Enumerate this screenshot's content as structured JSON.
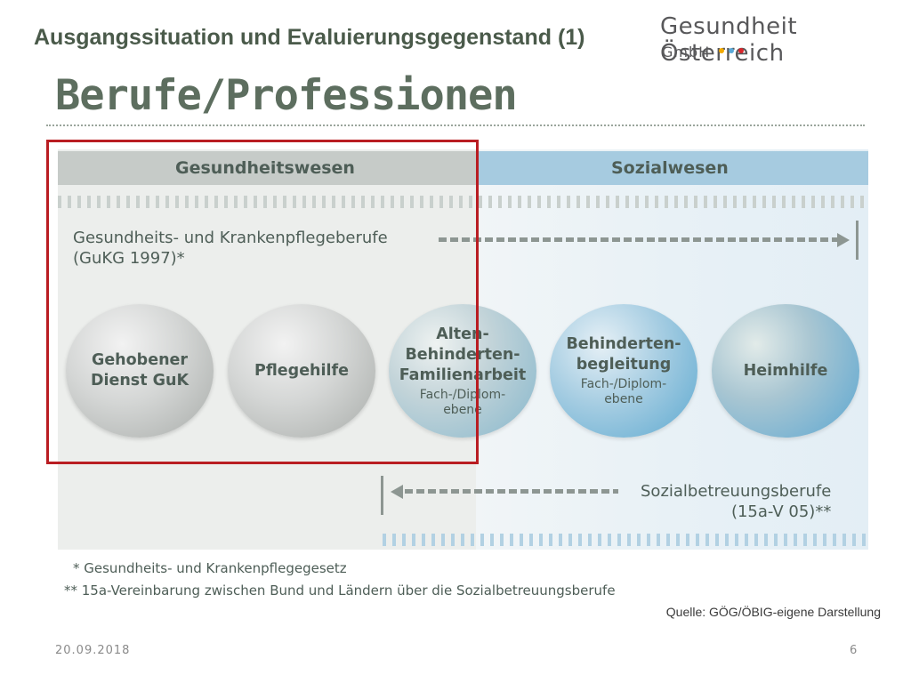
{
  "slide": {
    "subtitle": "Ausgangssituation und Evaluierungsgegenstand (1)",
    "title": "Berufe/Professionen",
    "date": "20.09.2018",
    "page_number": "6"
  },
  "logo": {
    "name": "Gesundheit Österreich",
    "suffix": "GmbH",
    "dot_colors": [
      "#f2a900",
      "#5aa9d8",
      "#d9262a"
    ]
  },
  "diagram": {
    "header_left": "Gesundheitswesen",
    "header_right": "Sozialwesen",
    "top_label_line1": "Gesundheits- und Krankenpflegeberufe",
    "top_label_line2": "(GuKG 1997)*",
    "bottom_label_line1": "Sozialbetreuungsberufe",
    "bottom_label_line2": "(15a-V 05)**",
    "circles": [
      {
        "name_line1": "Gehobener",
        "name_line2": "Dienst GuK"
      },
      {
        "name_line1": "Pflegehilfe"
      },
      {
        "name_line1": "Alten-",
        "name_line2": "Behinderten-",
        "name_line3": "Familienarbeit",
        "sub_line1": "Fach-/Diplom-",
        "sub_line2": "ebene"
      },
      {
        "name_line1": "Behinderten-",
        "name_line2": "begleitung",
        "sub_line1": "Fach-/Diplom-",
        "sub_line2": "ebene"
      },
      {
        "name_line1": "Heimhilfe"
      }
    ],
    "highlight_color": "#b91d22"
  },
  "footnotes": {
    "note1": "* Gesundheits- und Krankenpflegegesetz",
    "note2": "** 15a-Vereinbarung zwischen Bund und Ländern über die Sozialbetreuungsberufe"
  },
  "source": "Quelle: GÖG/ÖBIG-eigene Darstellung"
}
